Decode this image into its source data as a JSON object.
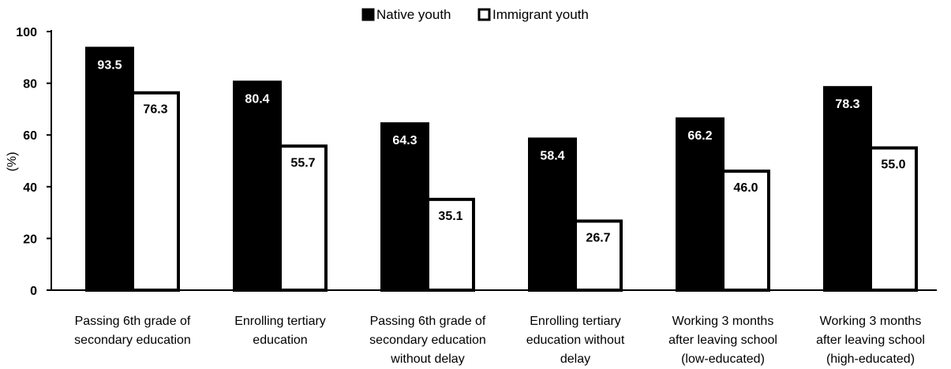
{
  "chart_data": {
    "type": "bar",
    "ylabel": "(%)",
    "ylim": [
      0,
      100
    ],
    "yticks": [
      0,
      20,
      40,
      60,
      80,
      100
    ],
    "grid": false,
    "legend_position": "top-center",
    "categories": [
      [
        "Passing 6th grade of",
        "secondary education"
      ],
      [
        "Enrolling tertiary",
        "education"
      ],
      [
        "Passing 6th grade of",
        "secondary education",
        "without delay"
      ],
      [
        "Enrolling tertiary",
        "education without",
        "delay"
      ],
      [
        "Working 3 months",
        "after leaving school",
        "(low-educated)"
      ],
      [
        "Working 3 months",
        "after leaving school",
        "(high-educated)"
      ]
    ],
    "series": [
      {
        "name": "Native youth",
        "fill": "#000000",
        "values": [
          93.5,
          80.4,
          64.3,
          58.4,
          66.2,
          78.3
        ]
      },
      {
        "name": "Immigrant youth",
        "fill": "#ffffff",
        "values": [
          76.3,
          55.7,
          35.1,
          26.7,
          46.0,
          55.0
        ]
      }
    ]
  }
}
